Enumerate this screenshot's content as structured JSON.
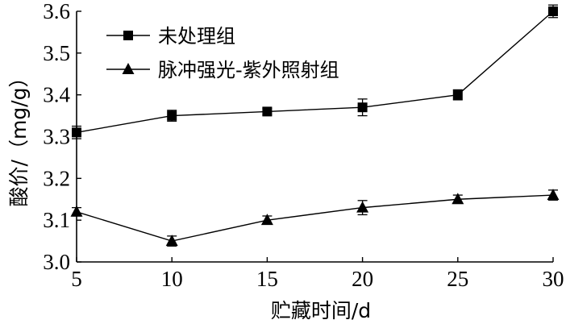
{
  "chart_data": {
    "type": "line",
    "title": "",
    "xlabel": "贮藏时间/d",
    "ylabel": "酸价/（mg/g）",
    "x": [
      5,
      10,
      15,
      20,
      25,
      30
    ],
    "xlim": [
      5,
      30
    ],
    "ylim": [
      3.0,
      3.6
    ],
    "xticks": [
      "5",
      "10",
      "15",
      "20",
      "25",
      "30"
    ],
    "yticks": [
      "3.0",
      "3.1",
      "3.2",
      "3.3",
      "3.4",
      "3.5",
      "3.6"
    ],
    "grid": false,
    "legend_position": "top-left",
    "series": [
      {
        "name": "未处理组",
        "marker": "square",
        "values": [
          3.31,
          3.35,
          3.36,
          3.37,
          3.4,
          3.6
        ],
        "errors": [
          0.015,
          0.013,
          0.008,
          0.02,
          0.012,
          0.015
        ]
      },
      {
        "name": "脉冲强光-紫外照射组",
        "marker": "triangle",
        "values": [
          3.12,
          3.05,
          3.1,
          3.13,
          3.15,
          3.16
        ],
        "errors": [
          0.01,
          0.012,
          0.01,
          0.017,
          0.01,
          0.012
        ]
      }
    ],
    "colors": {
      "line": "#000000",
      "marker": "#000000"
    }
  }
}
